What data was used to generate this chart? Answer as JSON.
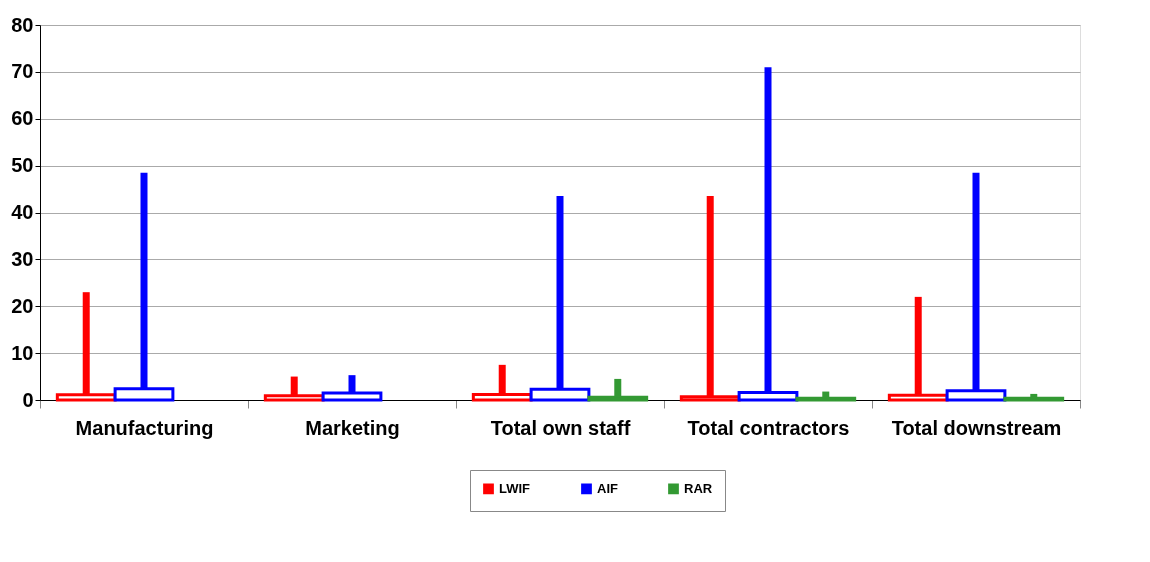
{
  "chart_data": {
    "type": "box",
    "categories": [
      "Manufacturing",
      "Marketing",
      "Total own staff",
      "Total contractors",
      "Total downstream"
    ],
    "series": [
      {
        "name": "LWIF",
        "color": "#ff0000",
        "boxes": [
          {
            "low": 0,
            "q1": 0,
            "median": 0,
            "q3": 1.1,
            "high": 23
          },
          {
            "low": 0,
            "q1": 0,
            "median": 0,
            "q3": 0.9,
            "high": 5
          },
          {
            "low": 0,
            "q1": 0,
            "median": 0,
            "q3": 1.2,
            "high": 7.5
          },
          {
            "low": 0,
            "q1": 0,
            "median": 0,
            "q3": 0.7,
            "high": 43.5
          },
          {
            "low": 0,
            "q1": 0,
            "median": 0,
            "q3": 1.0,
            "high": 22
          }
        ]
      },
      {
        "name": "AIF",
        "color": "#0000ff",
        "boxes": [
          {
            "low": 0,
            "q1": 0,
            "median": 0,
            "q3": 2.4,
            "high": 48.5
          },
          {
            "low": 0,
            "q1": 0,
            "median": 0,
            "q3": 1.5,
            "high": 5.3
          },
          {
            "low": 0,
            "q1": 0,
            "median": 0,
            "q3": 2.3,
            "high": 43.5
          },
          {
            "low": 0,
            "q1": 0,
            "median": 0,
            "q3": 1.6,
            "high": 71
          },
          {
            "low": 0,
            "q1": 0,
            "median": 0,
            "q3": 2.0,
            "high": 48.5
          }
        ]
      },
      {
        "name": "RAR",
        "color": "#339933",
        "boxes": [
          null,
          null,
          {
            "low": 0,
            "q1": 0,
            "median": 0,
            "q3": 0.6,
            "high": 4.5
          },
          {
            "low": 0,
            "q1": 0,
            "median": 0,
            "q3": 0.4,
            "high": 1.8
          },
          {
            "low": 0,
            "q1": 0,
            "median": 0,
            "q3": 0.4,
            "high": 1.3
          }
        ]
      }
    ],
    "ylim": [
      0,
      80
    ],
    "yticks": [
      0,
      10,
      20,
      30,
      40,
      50,
      60,
      70,
      80
    ],
    "grid": "y",
    "legend": "bottom"
  }
}
